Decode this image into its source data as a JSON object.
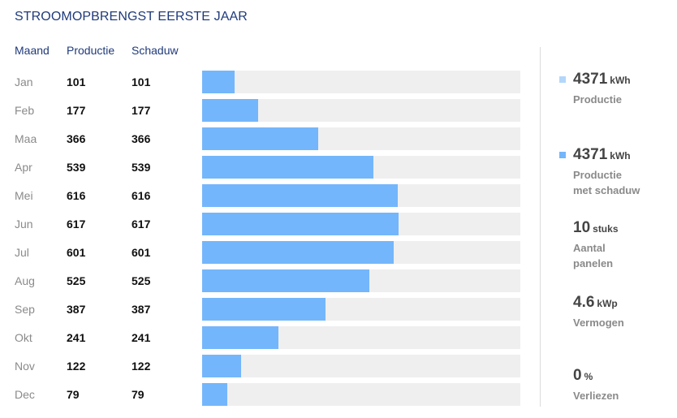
{
  "title": "STROOMOPBRENGST EERSTE JAAR",
  "headers": {
    "month": "Maand",
    "production": "Productie",
    "shadow": "Schaduw"
  },
  "chart_data": {
    "type": "bar",
    "orientation": "horizontal",
    "categories": [
      "Jan",
      "Feb",
      "Maa",
      "Apr",
      "Mei",
      "Jun",
      "Jul",
      "Aug",
      "Sep",
      "Okt",
      "Nov",
      "Dec"
    ],
    "series": [
      {
        "name": "Productie",
        "values": [
          101,
          177,
          366,
          539,
          616,
          617,
          601,
          525,
          387,
          241,
          122,
          79
        ]
      },
      {
        "name": "Schaduw",
        "values": [
          101,
          177,
          366,
          539,
          616,
          617,
          601,
          525,
          387,
          241,
          122,
          79
        ]
      }
    ],
    "xlim": [
      0,
      1000
    ],
    "colors": {
      "bar": "#74b6fb",
      "track": "#efefef"
    }
  },
  "stats": [
    {
      "value": "4371",
      "unit": "kWh",
      "label": "Productie",
      "swatch": "#b3d7fb"
    },
    {
      "value": "4371",
      "unit": "kWh",
      "label": "Productie\nmet schaduw",
      "swatch": "#74b6fb"
    },
    {
      "value": "10",
      "unit": "stuks",
      "label": "Aantal\npanelen"
    },
    {
      "value": "4.6",
      "unit": "kWp",
      "label": "Vermogen"
    },
    {
      "value": "0",
      "unit": "%",
      "label": "Verliezen"
    }
  ]
}
